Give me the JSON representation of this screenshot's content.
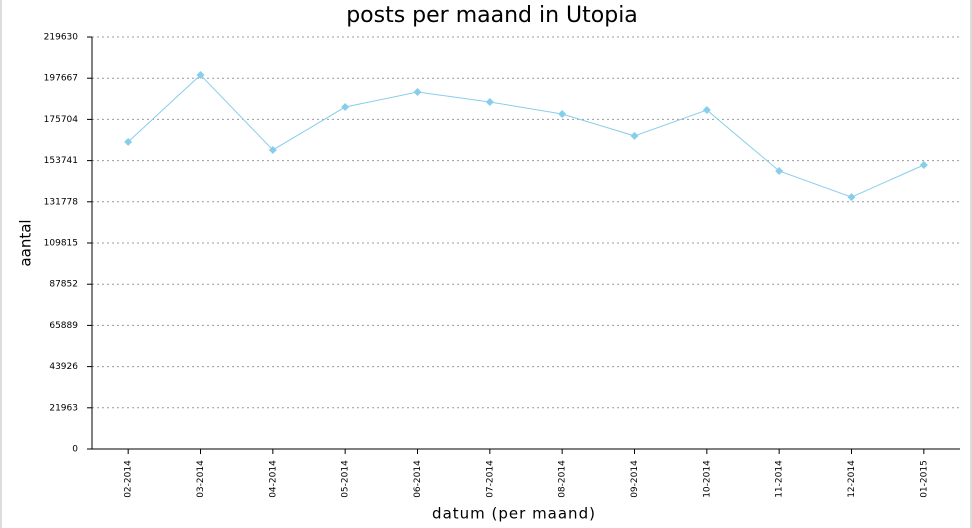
{
  "chart_data": {
    "type": "line",
    "title": "posts per maand in Utopia",
    "x_label": "datum (per maand)",
    "y_label": "aantal",
    "categories": [
      "02-2014",
      "03-2014",
      "04-2014",
      "05-2014",
      "06-2014",
      "07-2014",
      "08-2014",
      "09-2014",
      "10-2014",
      "11-2014",
      "12-2014",
      "01-2015"
    ],
    "series": [
      {
        "name": "posts",
        "color": "#87ceeb",
        "values": [
          163700,
          199400,
          159400,
          182300,
          190300,
          185000,
          178600,
          166900,
          180700,
          148200,
          134300,
          151400
        ]
      }
    ],
    "ylim": [
      0,
      219630
    ],
    "yticks": [
      0,
      21963,
      43926,
      65889,
      87852,
      109815,
      131778,
      153741,
      175704,
      197667,
      219630
    ],
    "grid": true
  }
}
